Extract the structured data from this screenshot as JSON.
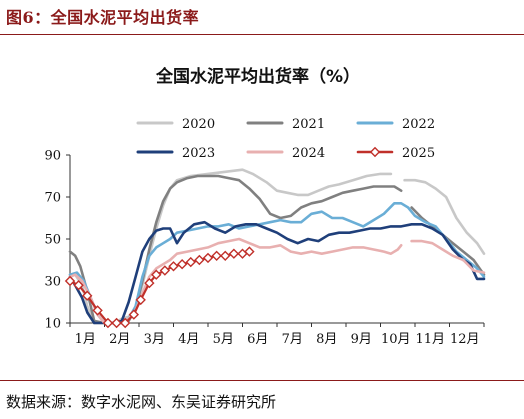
{
  "figure": {
    "title": "图6：全国水泥平均出货率",
    "source": "数据来源：数字水泥网、东吴证券研究所"
  },
  "chart_data": {
    "type": "line",
    "title": "全国水泥平均出货率（%）",
    "xlabel": "",
    "ylabel": "",
    "ylim": [
      10,
      90
    ],
    "yticks": [
      10,
      30,
      50,
      70,
      90
    ],
    "xlim": [
      0,
      12
    ],
    "month_ticks": [
      0,
      1,
      2,
      3,
      4,
      5,
      6,
      7,
      8,
      9,
      10,
      11
    ],
    "month_labels": [
      "1月",
      "2月",
      "3月",
      "4月",
      "5月",
      "6月",
      "7月",
      "8月",
      "9月",
      "10月",
      "11月",
      "12月"
    ],
    "grid": false,
    "legend_position": "top",
    "series": [
      {
        "name": "2020",
        "color": "#c8c8c8",
        "width": 2.6,
        "segments": [
          [
            [
              0,
              33
            ],
            [
              0.15,
              33
            ],
            [
              0.35,
              28
            ],
            [
              0.5,
              18
            ],
            [
              0.7,
              10
            ],
            [
              1.0,
              10
            ],
            [
              1.3,
              10
            ],
            [
              1.5,
              12
            ],
            [
              1.7,
              13
            ],
            [
              1.9,
              17
            ],
            [
              2.1,
              28
            ],
            [
              2.3,
              42
            ],
            [
              2.5,
              55
            ],
            [
              2.7,
              66
            ],
            [
              2.9,
              74
            ],
            [
              3.1,
              78
            ],
            [
              3.5,
              80
            ],
            [
              4.0,
              81
            ],
            [
              4.5,
              82
            ],
            [
              5.0,
              83
            ],
            [
              5.3,
              81
            ],
            [
              5.7,
              77
            ],
            [
              6.0,
              73
            ],
            [
              6.3,
              72
            ],
            [
              6.6,
              71
            ],
            [
              6.9,
              71
            ],
            [
              7.2,
              73
            ],
            [
              7.5,
              75
            ],
            [
              7.8,
              76
            ],
            [
              8.2,
              78
            ],
            [
              8.6,
              80
            ],
            [
              9.0,
              81
            ],
            [
              9.3,
              81
            ]
          ],
          [
            [
              9.7,
              78
            ],
            [
              10.0,
              78
            ],
            [
              10.3,
              77
            ],
            [
              10.6,
              74
            ],
            [
              10.9,
              70
            ],
            [
              11.2,
              60
            ],
            [
              11.5,
              53
            ],
            [
              11.8,
              48
            ],
            [
              12.0,
              43
            ]
          ]
        ]
      },
      {
        "name": "2021",
        "color": "#808080",
        "width": 2.6,
        "segments": [
          [
            [
              0,
              44
            ],
            [
              0.15,
              42
            ],
            [
              0.3,
              37
            ],
            [
              0.5,
              25
            ],
            [
              0.7,
              11
            ],
            [
              1.0,
              10
            ],
            [
              1.3,
              10
            ],
            [
              1.5,
              11
            ],
            [
              1.7,
              11
            ],
            [
              1.9,
              17
            ],
            [
              2.1,
              30
            ],
            [
              2.3,
              45
            ],
            [
              2.5,
              58
            ],
            [
              2.7,
              68
            ],
            [
              2.9,
              74
            ],
            [
              3.1,
              77
            ],
            [
              3.4,
              79
            ],
            [
              3.7,
              80
            ],
            [
              4.0,
              80
            ],
            [
              4.3,
              80
            ],
            [
              4.6,
              79
            ],
            [
              4.9,
              78
            ],
            [
              5.2,
              74
            ],
            [
              5.5,
              69
            ],
            [
              5.8,
              62
            ],
            [
              6.1,
              60
            ],
            [
              6.4,
              61
            ],
            [
              6.7,
              65
            ],
            [
              7.0,
              67
            ],
            [
              7.3,
              68
            ],
            [
              7.6,
              70
            ],
            [
              7.9,
              72
            ],
            [
              8.2,
              73
            ],
            [
              8.5,
              74
            ],
            [
              8.8,
              75
            ],
            [
              9.1,
              75
            ],
            [
              9.4,
              75
            ],
            [
              9.6,
              73
            ]
          ],
          [
            [
              9.9,
              65
            ],
            [
              10.2,
              60
            ],
            [
              10.5,
              56
            ],
            [
              10.8,
              52
            ],
            [
              11.1,
              48
            ],
            [
              11.4,
              44
            ],
            [
              11.7,
              40
            ],
            [
              12.0,
              33
            ]
          ]
        ]
      },
      {
        "name": "2022",
        "color": "#6aaed6",
        "width": 2.6,
        "segments": [
          [
            [
              0,
              33
            ],
            [
              0.2,
              34
            ],
            [
              0.4,
              30
            ],
            [
              0.6,
              22
            ],
            [
              0.8,
              14
            ],
            [
              1.0,
              10
            ],
            [
              1.3,
              10
            ],
            [
              1.5,
              10
            ],
            [
              1.7,
              12
            ],
            [
              1.9,
              18
            ],
            [
              2.1,
              32
            ],
            [
              2.3,
              42
            ],
            [
              2.5,
              46
            ],
            [
              2.7,
              48
            ],
            [
              2.9,
              50
            ],
            [
              3.1,
              53
            ],
            [
              3.4,
              54
            ],
            [
              3.7,
              55
            ],
            [
              4.0,
              56
            ],
            [
              4.3,
              56
            ],
            [
              4.6,
              57
            ],
            [
              4.9,
              55
            ],
            [
              5.2,
              56
            ],
            [
              5.5,
              57
            ],
            [
              5.8,
              58
            ],
            [
              6.1,
              59
            ],
            [
              6.4,
              58
            ],
            [
              6.7,
              58
            ],
            [
              7.0,
              62
            ],
            [
              7.3,
              63
            ],
            [
              7.6,
              60
            ],
            [
              7.9,
              60
            ],
            [
              8.2,
              58
            ],
            [
              8.5,
              56
            ],
            [
              8.8,
              59
            ],
            [
              9.1,
              62
            ],
            [
              9.4,
              67
            ],
            [
              9.6,
              67
            ],
            [
              9.8,
              65
            ],
            [
              10.0,
              61
            ],
            [
              10.3,
              58
            ],
            [
              10.6,
              56
            ],
            [
              10.9,
              50
            ],
            [
              11.2,
              44
            ],
            [
              11.5,
              40
            ],
            [
              11.8,
              36
            ],
            [
              12.0,
              32
            ]
          ]
        ]
      },
      {
        "name": "2023",
        "color": "#1f3f7a",
        "width": 2.6,
        "segments": [
          [
            [
              0,
              32
            ],
            [
              0.15,
              28
            ],
            [
              0.35,
              22
            ],
            [
              0.5,
              15
            ],
            [
              0.7,
              10
            ],
            [
              1.0,
              10
            ],
            [
              1.3,
              10
            ],
            [
              1.5,
              11
            ],
            [
              1.7,
              20
            ],
            [
              1.9,
              32
            ],
            [
              2.1,
              44
            ],
            [
              2.3,
              50
            ],
            [
              2.5,
              54
            ],
            [
              2.7,
              55
            ],
            [
              2.9,
              55
            ],
            [
              3.1,
              48
            ],
            [
              3.3,
              53
            ],
            [
              3.6,
              57
            ],
            [
              3.9,
              58
            ],
            [
              4.2,
              55
            ],
            [
              4.5,
              53
            ],
            [
              4.8,
              56
            ],
            [
              5.1,
              57
            ],
            [
              5.4,
              57
            ],
            [
              5.7,
              55
            ],
            [
              6.0,
              53
            ],
            [
              6.3,
              50
            ],
            [
              6.6,
              48
            ],
            [
              6.9,
              50
            ],
            [
              7.2,
              49
            ],
            [
              7.5,
              52
            ],
            [
              7.8,
              53
            ],
            [
              8.1,
              53
            ],
            [
              8.4,
              54
            ],
            [
              8.7,
              55
            ],
            [
              9.0,
              55
            ],
            [
              9.3,
              56
            ],
            [
              9.6,
              56
            ],
            [
              9.9,
              57
            ],
            [
              10.2,
              57
            ],
            [
              10.5,
              55
            ],
            [
              10.8,
              52
            ],
            [
              11.1,
              45
            ],
            [
              11.4,
              40
            ],
            [
              11.6,
              38
            ],
            [
              11.8,
              31
            ],
            [
              12.0,
              31
            ]
          ]
        ]
      },
      {
        "name": "2024",
        "color": "#e8b0b0",
        "width": 2.6,
        "segments": [
          [
            [
              0,
              32
            ],
            [
              0.15,
              33
            ],
            [
              0.35,
              30
            ],
            [
              0.6,
              22
            ],
            [
              0.8,
              14
            ],
            [
              1.0,
              10
            ],
            [
              1.3,
              10
            ],
            [
              1.5,
              10
            ],
            [
              1.7,
              12
            ],
            [
              1.9,
              16
            ],
            [
              2.1,
              24
            ],
            [
              2.3,
              32
            ],
            [
              2.5,
              36
            ],
            [
              2.7,
              38
            ],
            [
              2.9,
              40
            ],
            [
              3.1,
              43
            ],
            [
              3.4,
              44
            ],
            [
              3.7,
              45
            ],
            [
              4.0,
              46
            ],
            [
              4.3,
              48
            ],
            [
              4.6,
              49
            ],
            [
              4.9,
              50
            ],
            [
              5.2,
              48
            ],
            [
              5.5,
              46
            ],
            [
              5.8,
              46
            ],
            [
              6.1,
              47
            ],
            [
              6.4,
              44
            ],
            [
              6.7,
              43
            ],
            [
              7.0,
              44
            ],
            [
              7.3,
              43
            ],
            [
              7.6,
              44
            ],
            [
              7.9,
              45
            ],
            [
              8.2,
              46
            ],
            [
              8.5,
              46
            ],
            [
              8.8,
              45
            ],
            [
              9.1,
              44
            ],
            [
              9.3,
              43
            ],
            [
              9.5,
              45
            ],
            [
              9.6,
              47
            ]
          ],
          [
            [
              9.9,
              49
            ],
            [
              10.2,
              49
            ],
            [
              10.5,
              48
            ],
            [
              10.8,
              45
            ],
            [
              11.1,
              42
            ],
            [
              11.4,
              40
            ],
            [
              11.7,
              35
            ],
            [
              12.0,
              34
            ]
          ]
        ]
      },
      {
        "name": "2025",
        "color": "#c0302a",
        "width": 2.2,
        "marker": "diamond",
        "segments": [
          [
            [
              0.0,
              30
            ],
            [
              0.25,
              28
            ],
            [
              0.5,
              23
            ],
            [
              0.8,
              16
            ],
            [
              1.1,
              9
            ],
            [
              1.35,
              9
            ],
            [
              1.6,
              10
            ],
            [
              1.85,
              14
            ],
            [
              2.05,
              21
            ],
            [
              2.3,
              29
            ],
            [
              2.5,
              33
            ],
            [
              2.75,
              35
            ],
            [
              3.0,
              37
            ],
            [
              3.25,
              38
            ],
            [
              3.5,
              39
            ],
            [
              3.75,
              40
            ],
            [
              4.0,
              41
            ],
            [
              4.25,
              42
            ],
            [
              4.5,
              42
            ],
            [
              4.75,
              43
            ],
            [
              5.0,
              43
            ],
            [
              5.2,
              44
            ]
          ]
        ]
      }
    ]
  }
}
